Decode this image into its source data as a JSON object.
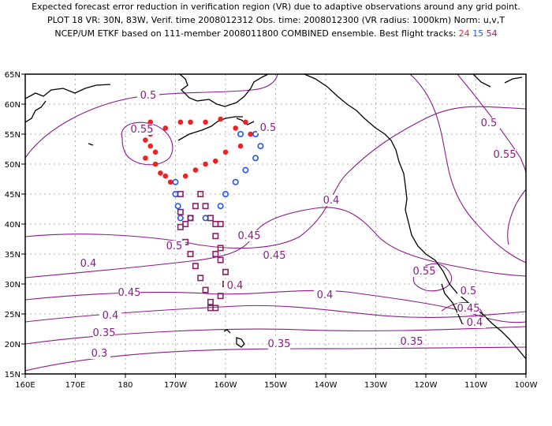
{
  "title": {
    "line1": "Expected forecast error reduction in verification region (VR) due to adaptive observations around any grid point.",
    "line2": "PLOT 18 VR: 30N, 83W, Verif. time 2008012312 Obs. time: 2008012300 (VR radius: 1000km) Norm: u,v,T",
    "line3_prefix": "NCEP/UM ETKF based on 111-member 2008011800 COMBINED ensemble.  Best flight tracks:",
    "track_ids": [
      "24",
      "15",
      "54"
    ]
  },
  "colors": {
    "contour": "#8b1a89",
    "track_24": "#ee2222",
    "track_15": "#2255ee",
    "track_54": "#882266",
    "coast": "#000000",
    "grid": "#999999"
  },
  "axes": {
    "x_ticks": [
      "160E",
      "170E",
      "180",
      "170W",
      "160W",
      "150W",
      "140W",
      "130W",
      "120W",
      "110W",
      "100W"
    ],
    "y_ticks": [
      "65N",
      "60N",
      "55N",
      "50N",
      "45N",
      "40N",
      "35N",
      "30N",
      "25N",
      "20N",
      "15N"
    ]
  },
  "contour_labels": [
    "0.5",
    "0.55",
    "0.5",
    "0.4",
    "0.55",
    "0.5",
    "0.45",
    "0.55",
    "0.5",
    "0.45",
    "0.4",
    "0.45",
    "0.4",
    "0.35",
    "0.3",
    "0.35",
    "0.4",
    "0.35",
    "0.5",
    "0.45",
    "0.4",
    "0.4"
  ],
  "tracks": {
    "track_24": {
      "symbol": "filled-circle",
      "points_lonlat": [
        [
          -174,
          52
        ],
        [
          -176,
          51
        ],
        [
          -175,
          53
        ],
        [
          -176,
          54
        ],
        [
          -175,
          55
        ],
        [
          -175,
          57
        ],
        [
          -172,
          56
        ],
        [
          -169,
          57
        ],
        [
          -167,
          57
        ],
        [
          -164,
          57
        ],
        [
          -161,
          57.5
        ],
        [
          -158,
          56
        ],
        [
          -156,
          57
        ],
        [
          -155,
          55
        ],
        [
          -157,
          53
        ],
        [
          -160,
          52
        ],
        [
          -162,
          50.5
        ],
        [
          -164,
          50
        ],
        [
          -166,
          49
        ],
        [
          -168,
          48
        ],
        [
          -171,
          47
        ],
        [
          -173,
          48.5
        ],
        [
          -174,
          50
        ],
        [
          -172,
          48
        ]
      ]
    },
    "track_15": {
      "symbol": "open-circle",
      "points_lonlat": [
        [
          -170,
          47
        ],
        [
          -170,
          45
        ],
        [
          -169.5,
          43
        ],
        [
          -169,
          41
        ],
        [
          -167,
          41
        ],
        [
          -164,
          41
        ],
        [
          -161,
          43
        ],
        [
          -160,
          45
        ],
        [
          -158,
          47
        ],
        [
          -156,
          49
        ],
        [
          -154,
          51
        ],
        [
          -153,
          53
        ],
        [
          -152,
          56
        ],
        [
          -154,
          55
        ],
        [
          -157,
          55
        ]
      ]
    },
    "track_54": {
      "symbol": "open-square",
      "points_lonlat": [
        [
          -169,
          45
        ],
        [
          -169,
          42
        ],
        [
          -169,
          39.5
        ],
        [
          -168,
          37
        ],
        [
          -167,
          35
        ],
        [
          -166,
          33
        ],
        [
          -165,
          31
        ],
        [
          -164,
          29
        ],
        [
          -163,
          27
        ],
        [
          -162,
          26
        ],
        [
          -161,
          28
        ],
        [
          -160,
          30
        ],
        [
          -160,
          32
        ],
        [
          -161,
          34
        ],
        [
          -161,
          36
        ],
        [
          -162,
          38
        ],
        [
          -162,
          40
        ],
        [
          -163,
          41
        ],
        [
          -164,
          43
        ],
        [
          -165,
          45
        ],
        [
          -166,
          43
        ],
        [
          -167,
          41
        ],
        [
          -168,
          40
        ],
        [
          -163,
          26
        ],
        [
          -162,
          35
        ],
        [
          -160,
          30
        ],
        [
          -161,
          40
        ]
      ]
    }
  }
}
